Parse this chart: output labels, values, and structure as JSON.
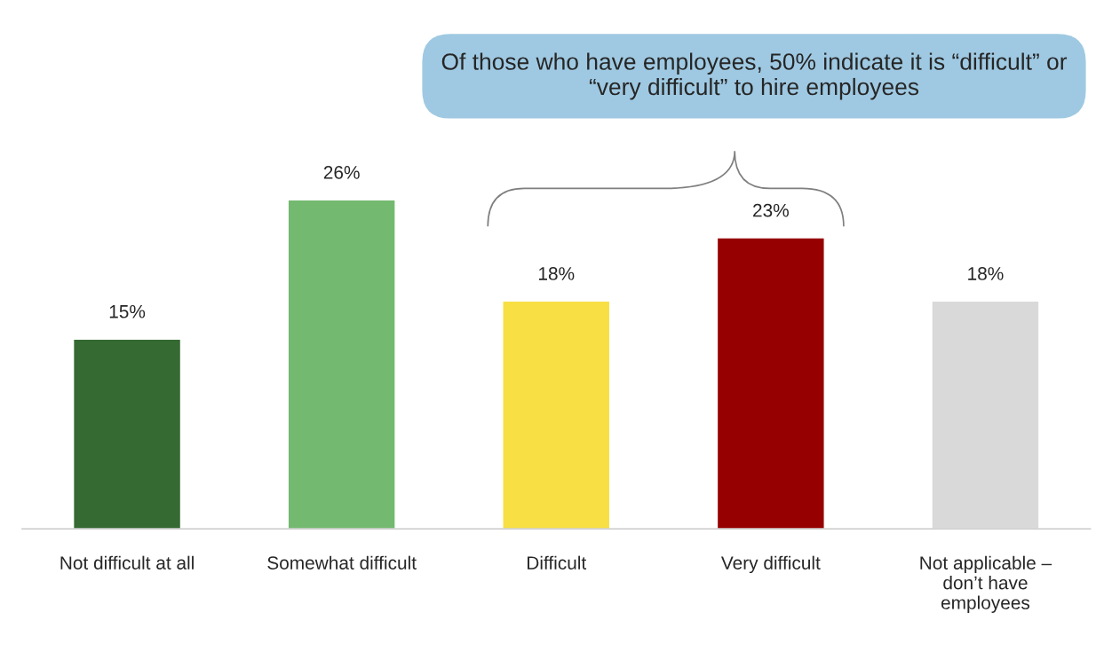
{
  "chart_data": {
    "type": "bar",
    "categories": [
      "Not difficult at all",
      "Somewhat difficult",
      "Difficult",
      "Very difficult",
      "Not applicable – don’t have employees"
    ],
    "values": [
      15,
      26,
      18,
      23,
      18
    ],
    "colors": [
      "#356a32",
      "#74b970",
      "#f7df44",
      "#960000",
      "#d9d9d9"
    ],
    "value_labels": [
      "15%",
      "26%",
      "18%",
      "23%",
      "18%"
    ],
    "annotations": [
      "Of those who have employees, 50% indicate it is “difficult” or “very difficult” to hire employees"
    ],
    "grid": false,
    "legend": false
  }
}
